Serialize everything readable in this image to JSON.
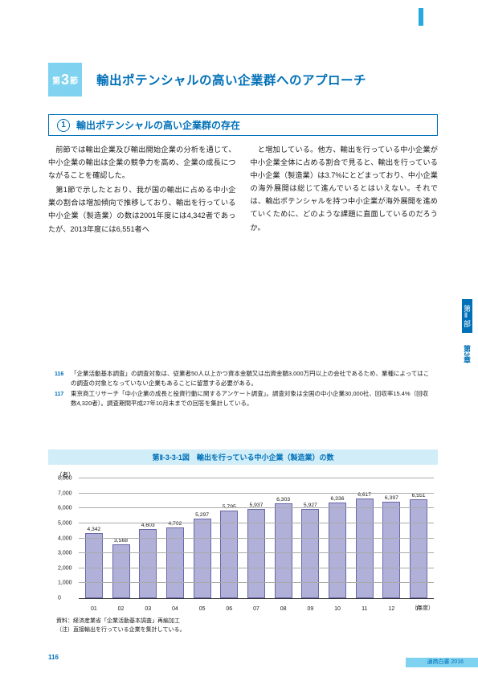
{
  "section": {
    "badge_prefix": "第",
    "badge_number": "3",
    "badge_suffix": "節",
    "title": "輸出ポテンシャルの高い企業群へのアプローチ"
  },
  "numbered_box": {
    "number": "1",
    "title": "輸出ポテンシャルの高い企業群の存在"
  },
  "body": {
    "left_p1": "前節では輸出企業及び輸出開始企業の分析を通じて、中小企業の輸出は企業の競争力を高め、企業の成長につながることを確認した。",
    "left_p2": "第1節で示したとおり、我が国の輸出に占める中小企業の割合は増加傾向で推移しており、輸出を行っている中小企業（製造業）の数は2001年度には4,342者であったが、2013年度には6,551者へ",
    "right_p1": "と増加している。他方、輸出を行っている中小企業が中小企業全体に占める割合で見ると、輸出を行っている中小企業（製造業）は3.7%にとどまっており、中小企業の海外展開は総じて進んでいるとはいえない。それでは、輸出ポテンシャルを持つ中小企業が海外展開を進めていくために、どのような課題に直面しているのだろうか。"
  },
  "footnotes": {
    "f1_num": "116",
    "f1_text": "「企業活動基本調査」の調査対象は、従業者50人以上かつ資本金額又は出資金額3,000万円以上の会社であるため、業種によってはこの調査の対象となっていない企業もあることに留意する必要がある。",
    "f2_num": "117",
    "f2_text": "東京商工リサーチ「中小企業の成長と投資行動に関するアンケート調査」。調査対象は全国の中小企業30,000社、回収率15.4%（回収数4,320者）。調査期間平成27年10月末までの回答を集計している。"
  },
  "figure": {
    "title": "第Ⅱ-3-3-1図　輸出を行っている中小企業（製造業）の数",
    "y_axis_label": "（者）",
    "x_axis_unit": "（年度）",
    "source_line1": "資料：経済産業省「企業活動基本調査」再編加工",
    "source_line2": "（注）直接輸出を行っている企業を集計している。"
  },
  "chart": {
    "type": "bar",
    "ylim": [
      0,
      8000
    ],
    "yticks": [
      0,
      1000,
      2000,
      3000,
      4000,
      5000,
      6000,
      7000,
      8000
    ],
    "categories": [
      "01",
      "02",
      "03",
      "04",
      "05",
      "06",
      "07",
      "08",
      "09",
      "10",
      "11",
      "12",
      "13"
    ],
    "values": [
      4342,
      3568,
      4603,
      4702,
      5297,
      5795,
      5937,
      6303,
      5927,
      6336,
      6617,
      6397,
      6551
    ],
    "bar_fill": "#b0b0d8",
    "bar_stroke": "#6868a8",
    "grid_color": "#aaaaaa",
    "background": "#ffffff",
    "label_fontsize": 6.8
  },
  "side_tab": {
    "part": "第Ⅱ部",
    "chapter": "第3章"
  },
  "footer": {
    "page": "116",
    "doc": "通商白書 2016"
  }
}
